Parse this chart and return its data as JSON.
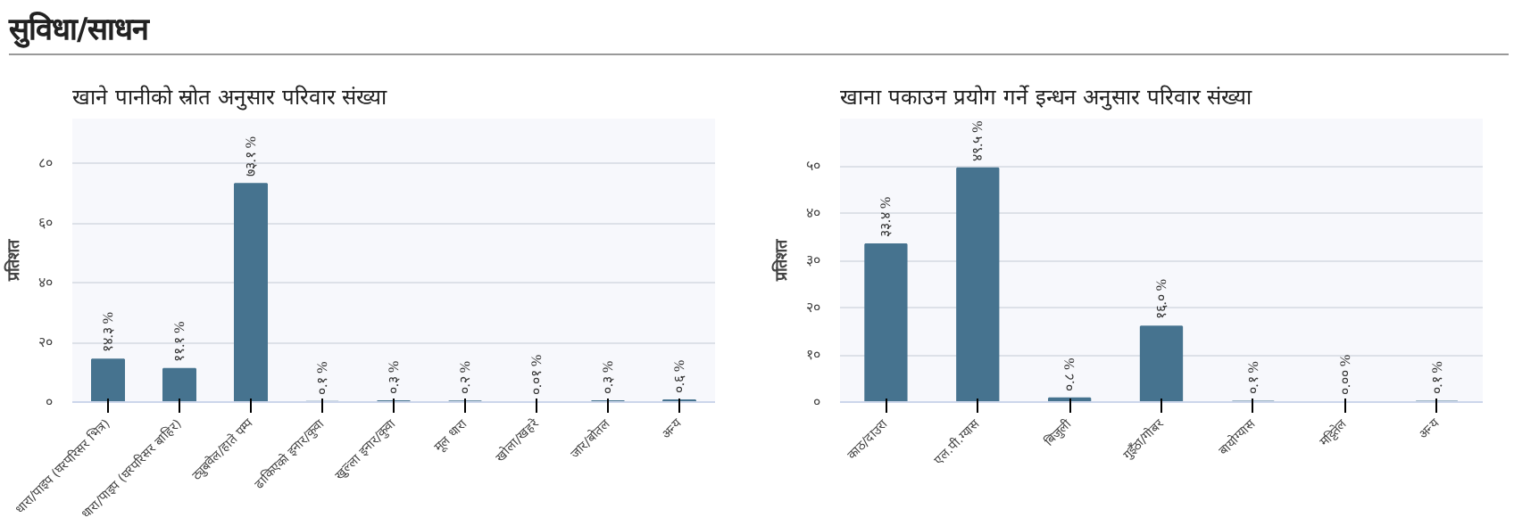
{
  "chart_data": [
    {
      "type": "bar",
      "title": "खाने पानीको स्रोत अनुसार परिवार संख्या",
      "annotations": [
        "सुविधा/साधन"
      ],
      "ylabel": "प्रतिशत",
      "categories": [
        "धारा/पाइप (घरपरिसर भित्र)",
        "धारा/पाइप (घरपरिसर बाहिर)",
        "ट्युबवेल/हाते पम्प",
        "ढाकिएको इनार/कुवा",
        "खुल्ला इनार/कुवा",
        "मूल धारा",
        "खोला/खहरे",
        "जार/बोतल",
        "अन्य"
      ],
      "values": [
        14.3,
        11.1,
        73.1,
        0.1,
        0.3,
        0.2,
        0.01,
        0.3,
        0.6
      ],
      "value_labels": [
        "१४.३ %",
        "११.१ %",
        "७३.१ %",
        "०.१ %",
        "०.३ %",
        "०.२ %",
        "०.०१ %",
        "०.३ %",
        "०.६ %"
      ],
      "color": "#46738f",
      "ylim": [
        0,
        95
      ],
      "yticks": [
        {
          "value": 0,
          "label": "०"
        },
        {
          "value": 20,
          "label": "२०"
        },
        {
          "value": 40,
          "label": "४०"
        },
        {
          "value": 60,
          "label": "६०"
        },
        {
          "value": 80,
          "label": "८०"
        }
      ],
      "grid": "y"
    },
    {
      "type": "bar",
      "title": "खाना पकाउन प्रयोग गर्ने इन्धन अनुसार परिवार संख्या",
      "ylabel": "प्रतिशत",
      "categories": [
        "काठ/दाउरा",
        "एल.पी.ग्यास",
        "बिजुली",
        "गुइँठा/गोबर",
        "बायोग्यास",
        "मट्टितेल",
        "अन्य"
      ],
      "values": [
        33.4,
        49.5,
        0.8,
        16.0,
        0.1,
        0.0,
        0.1
      ],
      "value_labels": [
        "३३.४ %",
        "४९.५ %",
        "०.८ %",
        "१६.० %",
        "०.१ %",
        "०.०० %",
        "०.१ %"
      ],
      "color": "#46738f",
      "ylim": [
        0,
        60
      ],
      "yticks": [
        {
          "value": 0,
          "label": "०"
        },
        {
          "value": 10,
          "label": "१०"
        },
        {
          "value": 20,
          "label": "२०"
        },
        {
          "value": 30,
          "label": "३०"
        },
        {
          "value": 40,
          "label": "४०"
        },
        {
          "value": 50,
          "label": "५०"
        }
      ],
      "grid": "y"
    }
  ]
}
